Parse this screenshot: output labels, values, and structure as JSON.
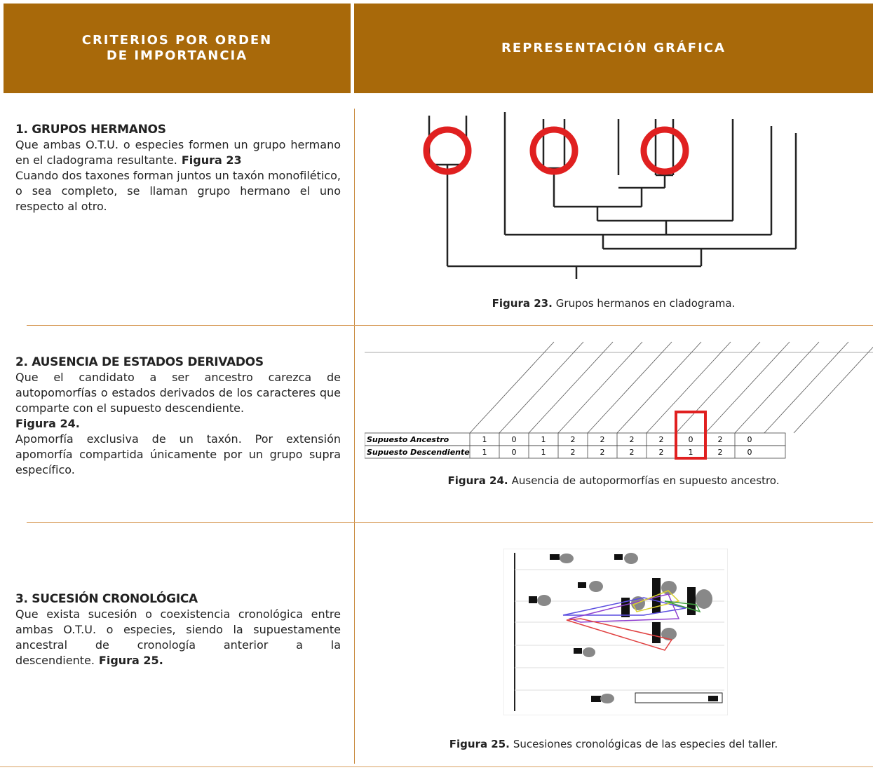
{
  "header": {
    "left_lines": [
      "CRITERIOS POR ORDEN",
      "DE IMPORTANCIA"
    ],
    "right": "REPRESENTACIÓN GRÁFICA"
  },
  "rows": [
    {
      "title": "1. GRUPOS HERMANOS",
      "paragraphs": [
        [
          {
            "text": "Que ambas O.T.U. o especies formen un grupo hermano en el cladograma resultante."
          },
          {
            "text": "Figura 23",
            "bold": true
          }
        ],
        [
          {
            "text": "Cuando dos taxones forman juntos un taxón monofilético, o sea completo, se llaman grupo hermano el uno respecto al otro."
          }
        ]
      ],
      "caption": {
        "label": "Figura 23.",
        "text": "Grupos hermanos en cladograma."
      }
    },
    {
      "title": "2. AUSENCIA DE ESTADOS DERIVADOS",
      "paragraphs": [
        [
          {
            "text": "Que el candidato a ser ancestro carezca de autopomorfías o estados derivados de los caracteres que comparte con el supuesto descendiente."
          }
        ],
        [
          {
            "text": "Figura 24.",
            "bold": true
          }
        ],
        [
          {
            "text": "Apomorfía exclusiva de un taxón. Por extensión apomorfía compartida únicamente por un grupo supra específico."
          }
        ]
      ],
      "caption": {
        "label": "Figura 24.",
        "text": "Ausencia de autopormorfías en supuesto ancestro."
      },
      "figure_table": [
        {
          "label": "Supuesto Ancestro",
          "cells": [
            "1",
            "0",
            "1",
            "2",
            "2",
            "2",
            "2",
            "0",
            "2",
            "0"
          ]
        },
        {
          "label": "Supuesto Descendiente",
          "cells": [
            "1",
            "0",
            "1",
            "2",
            "2",
            "2",
            "2",
            "1",
            "2",
            "0"
          ]
        }
      ]
    },
    {
      "title": "3. SUCESIÓN CRONOLÓGICA",
      "paragraphs": [
        [
          {
            "text": "Que exista sucesión o coexistencia cronológica entre ambas O.T.U. o especies, siendo la supuestamente ancestral de cronología anterior a la descendiente."
          },
          {
            "text": "Figura 25.",
            "bold": true
          }
        ]
      ],
      "caption": {
        "label": "Figura 25.",
        "text": "Sucesiones cronológicas de las especies del taller."
      }
    }
  ]
}
